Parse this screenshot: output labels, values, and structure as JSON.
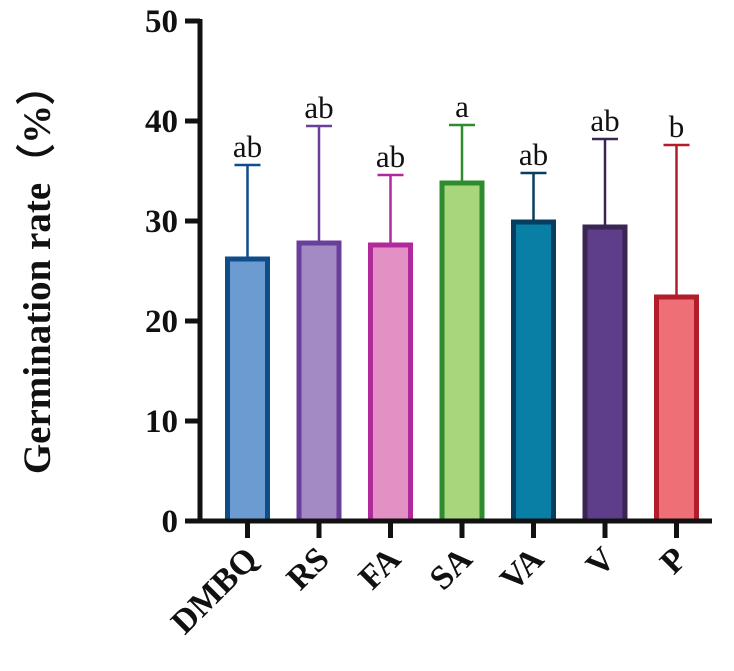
{
  "chart_data": {
    "type": "bar",
    "title": "",
    "xlabel": "",
    "ylabel": "Germination rate（%）",
    "ylim": [
      0,
      50
    ],
    "yticks": [
      0,
      10,
      20,
      30,
      40,
      50
    ],
    "grid": false,
    "categories": [
      "DMBQ",
      "RS",
      "FA",
      "SA",
      "VA",
      "V",
      "P"
    ],
    "values": [
      26.2,
      27.8,
      27.6,
      33.8,
      29.9,
      29.4,
      22.4
    ],
    "error_upper": [
      35.6,
      39.5,
      34.6,
      39.6,
      34.8,
      38.2,
      37.6
    ],
    "significance": [
      "ab",
      "ab",
      "ab",
      "a",
      "ab",
      "ab",
      "b"
    ],
    "fill_colors": [
      "#6b9bd0",
      "#a48ac4",
      "#e391c4",
      "#a7d67d",
      "#0a7fa6",
      "#5e3d8a",
      "#ee6f76"
    ],
    "edge_colors": [
      "#0f4c8a",
      "#6a3f9c",
      "#b12a9c",
      "#2e8b2e",
      "#073d5e",
      "#3a2553",
      "#b31d2b"
    ]
  }
}
